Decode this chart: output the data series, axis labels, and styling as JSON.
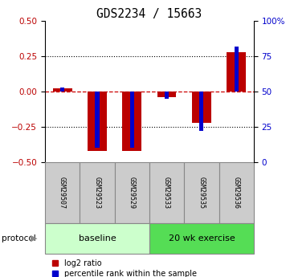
{
  "title": "GDS2234 / 15663",
  "samples": [
    "GSM29507",
    "GSM29523",
    "GSM29529",
    "GSM29533",
    "GSM29535",
    "GSM29536"
  ],
  "log2_ratio": [
    0.02,
    -0.42,
    -0.42,
    -0.04,
    -0.22,
    0.28
  ],
  "percentile_rank": [
    53,
    10,
    10,
    45,
    22,
    82
  ],
  "groups": [
    {
      "label": "baseline",
      "indices": [
        0,
        1,
        2
      ],
      "color": "#ccffcc"
    },
    {
      "label": "20 wk exercise",
      "indices": [
        3,
        4,
        5
      ],
      "color": "#55dd55"
    }
  ],
  "ylim": [
    -0.5,
    0.5
  ],
  "yticks_left": [
    -0.5,
    -0.25,
    0,
    0.25,
    0.5
  ],
  "yticks_right": [
    0,
    25,
    50,
    75,
    100
  ],
  "red_bar_width": 0.55,
  "blue_bar_width": 0.12,
  "red_color": "#bb0000",
  "blue_color": "#0000cc",
  "dashed_line_color": "#cc0000",
  "dotted_line_color": "#000000",
  "bg_color": "#ffffff",
  "sample_box_color": "#cccccc",
  "legend_red_label": "log2 ratio",
  "legend_blue_label": "percentile rank within the sample"
}
